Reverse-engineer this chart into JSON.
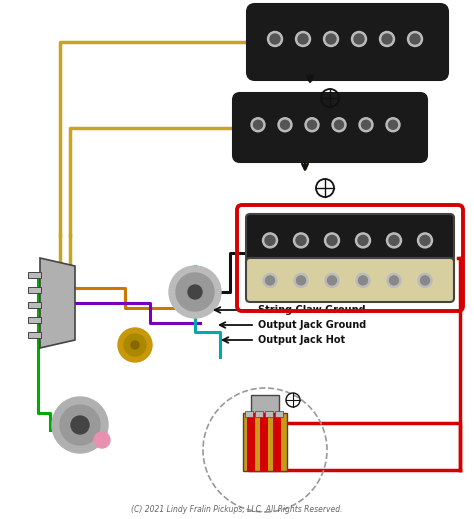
{
  "bg_color": "#ffffff",
  "copyright": "(C) 2021 Lindy Fralin Pickups, LLC. All Rights Reserved.",
  "labels": {
    "string_claw": "String Claw Ground",
    "output_jack_ground": "Output Jack Ground",
    "output_jack_hot": "Output Jack Hot"
  },
  "colors": {
    "red": "#d40000",
    "gold": "#c8a422",
    "green": "#00aa00",
    "purple": "#7700bb",
    "orange": "#cc7700",
    "teal": "#00aaaa",
    "black": "#111111",
    "white": "#ffffff",
    "gray": "#999999",
    "silver": "#bbbbbb",
    "dark_gray": "#444444",
    "light_gray": "#cccccc",
    "pickup_black": "#1a1a1a",
    "pickup_cream": "#d8cfa0",
    "tan": "#c8980a",
    "pink": "#e890b0",
    "chrome": "#b0b0b0"
  }
}
